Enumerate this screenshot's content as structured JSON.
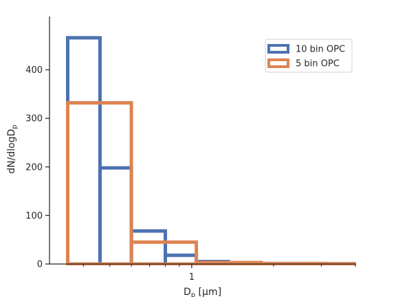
{
  "chart_data": {
    "type": "histogram-step",
    "xscale": "log",
    "xlim": [
      0.3,
      4.0
    ],
    "ylim": [
      0,
      490
    ],
    "xlabel": "D",
    "xlabel_sub": "p",
    "xlabel_unit": " [µm]",
    "ylabel": "dN/dlogD",
    "ylabel_sub": "p",
    "xticks": [
      {
        "value": 1,
        "label": "1"
      }
    ],
    "xminor": [
      0.4,
      0.5,
      0.6,
      0.7,
      0.8,
      0.9,
      2,
      3,
      4
    ],
    "yticks": [
      0,
      100,
      200,
      300,
      400
    ],
    "grid": false,
    "legend_position": "top-right",
    "series": [
      {
        "name": "10 bin OPC",
        "color": "#4C72B0",
        "edges": [
          0.35,
          0.46,
          0.6,
          0.8,
          1.04,
          1.36,
          1.8,
          2.35,
          3.1,
          4.05,
          5.3
        ],
        "values": [
          466,
          198,
          68,
          18,
          5,
          1.5,
          0.8,
          0.5,
          0.3,
          0.2
        ]
      },
      {
        "name": "5 bin OPC",
        "color": "#DD8452",
        "edges": [
          0.35,
          0.6,
          1.04,
          1.8,
          3.1,
          5.3
        ],
        "values": [
          332,
          45,
          3,
          1,
          0.5
        ]
      }
    ]
  }
}
